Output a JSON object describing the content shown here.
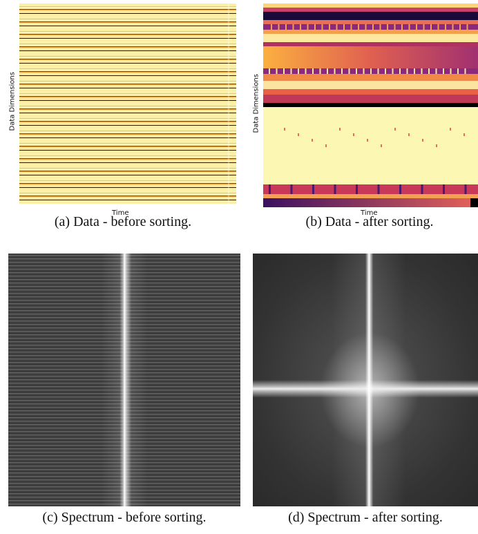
{
  "panels": [
    {
      "caption": "(a) Data - before sorting.",
      "xlabel": "Time",
      "ylabel": "Data Dimensions"
    },
    {
      "caption": "(b) Data - after sorting.",
      "xlabel": "Time",
      "ylabel": "Data Dimensions"
    },
    {
      "caption": "(c) Spectrum - before sorting."
    },
    {
      "caption": "(d) Spectrum - after sorting."
    }
  ]
}
